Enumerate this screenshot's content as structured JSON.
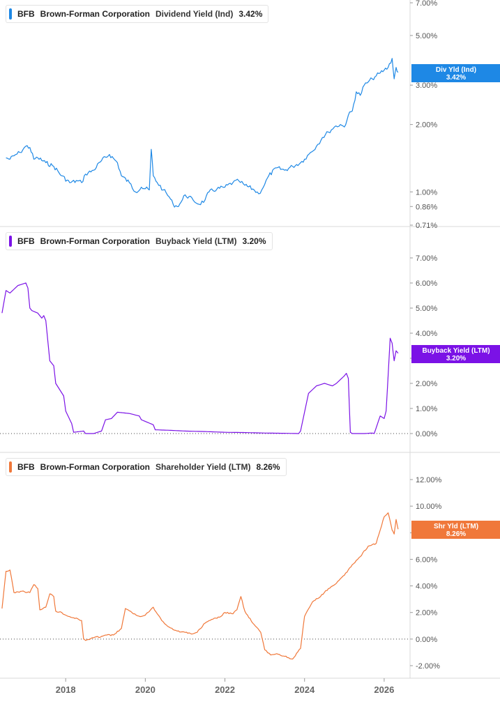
{
  "panels": [
    {
      "ticker": "BFB",
      "company": "Brown-Forman Corporation",
      "metric": "Dividend Yield (Ind)",
      "value": "3.42%",
      "color": "#1e88e5",
      "label_box": [
        "Div Yld (Ind)",
        "3.42%"
      ]
    },
    {
      "ticker": "BFB",
      "company": "Brown-Forman Corporation",
      "metric": "Buyback Yield (LTM)",
      "value": "3.20%",
      "color": "#7b12e6",
      "label_box": [
        "Buyback Yield (LTM)",
        "3.20%"
      ]
    },
    {
      "ticker": "BFB",
      "company": "Brown-Forman Corporation",
      "metric": "Shareholder Yield (LTM)",
      "value": "8.26%",
      "color": "#f0783a",
      "label_box": [
        "Shr Yld (LTM)",
        "8.26%"
      ]
    }
  ],
  "chart_data": [
    {
      "type": "line",
      "title": "BFB Brown-Forman Corporation Dividend Yield (Ind) 3.42%",
      "scale": "log",
      "ylim": [
        0.71,
        7.0
      ],
      "y_ticks": [
        "7.00%",
        "5.00%",
        "3.00%",
        "2.00%",
        "1.00%",
        "0.86%",
        "0.71%"
      ],
      "y_tick_values": [
        7.0,
        5.0,
        3.0,
        2.0,
        1.0,
        0.86,
        0.71
      ],
      "x_ticks": [
        "2018",
        "2020",
        "2022",
        "2024",
        "2026"
      ],
      "series": [
        {
          "x": [
            2016.5,
            2016.6,
            2016.7,
            2016.85,
            2017.0,
            2017.1,
            2017.2,
            2017.3,
            2017.5,
            2017.7,
            2017.9,
            2018.1,
            2018.3,
            2018.4,
            2018.5,
            2018.7,
            2018.9,
            2019.1,
            2019.3,
            2019.4,
            2019.6,
            2019.75,
            2019.9,
            2020.1,
            2020.15,
            2020.2,
            2020.3,
            2020.45,
            2020.6,
            2020.7,
            2020.8,
            2020.9,
            2021.0,
            2021.2,
            2021.35,
            2021.5,
            2021.6,
            2021.8,
            2022.0,
            2022.2,
            2022.35,
            2022.5,
            2022.7,
            2022.85,
            2023.0,
            2023.1,
            2023.3,
            2023.5,
            2023.7,
            2023.9,
            2024.0,
            2024.15,
            2024.3,
            2024.45,
            2024.6,
            2024.75,
            2024.9,
            2025.0,
            2025.1,
            2025.2,
            2025.3,
            2025.4,
            2025.5,
            2025.6,
            2025.7,
            2025.8,
            2025.9,
            2026.0,
            2026.1,
            2026.2,
            2026.25,
            2026.3,
            2026.35
          ],
          "y": [
            1.42,
            1.4,
            1.45,
            1.5,
            1.6,
            1.58,
            1.4,
            1.42,
            1.35,
            1.3,
            1.18,
            1.1,
            1.12,
            1.1,
            1.2,
            1.25,
            1.38,
            1.47,
            1.35,
            1.18,
            1.1,
            1.0,
            1.05,
            1.02,
            1.55,
            1.18,
            1.1,
            1.02,
            0.95,
            0.88,
            0.86,
            0.9,
            0.97,
            0.92,
            0.88,
            0.92,
            1.0,
            1.03,
            1.05,
            1.1,
            1.12,
            1.07,
            1.03,
            0.98,
            1.08,
            1.18,
            1.28,
            1.25,
            1.3,
            1.35,
            1.4,
            1.5,
            1.6,
            1.75,
            1.85,
            1.95,
            2.0,
            1.95,
            2.2,
            2.3,
            2.8,
            2.7,
            3.0,
            3.1,
            3.2,
            3.3,
            3.4,
            3.5,
            3.6,
            3.95,
            3.2,
            3.6,
            3.42
          ]
        }
      ],
      "annotation": [
        "Div Yld (Ind)",
        "3.42%"
      ]
    },
    {
      "type": "line",
      "title": "BFB Brown-Forman Corporation Buyback Yield (LTM) 3.20%",
      "ylim": [
        0.0,
        7.0
      ],
      "y_ticks": [
        "7.00%",
        "6.00%",
        "5.00%",
        "4.00%",
        "3.00%",
        "2.00%",
        "1.00%",
        "0.00%"
      ],
      "y_tick_values": [
        7.0,
        6.0,
        5.0,
        4.0,
        3.0,
        2.0,
        1.0,
        0.0
      ],
      "x_ticks": [
        "2018",
        "2020",
        "2022",
        "2024",
        "2026"
      ],
      "series": [
        {
          "x": [
            2016.4,
            2016.5,
            2016.6,
            2016.8,
            2017.0,
            2017.05,
            2017.1,
            2017.15,
            2017.3,
            2017.4,
            2017.45,
            2017.5,
            2017.6,
            2017.7,
            2017.75,
            2017.95,
            2018.0,
            2018.15,
            2018.2,
            2018.45,
            2018.5,
            2018.7,
            2018.9,
            2019.0,
            2019.15,
            2019.3,
            2019.6,
            2019.85,
            2019.9,
            2020.2,
            2020.25,
            2020.6,
            2021.0,
            2021.5,
            2022.0,
            2022.5,
            2023.0,
            2023.5,
            2023.85,
            2023.9,
            2024.1,
            2024.3,
            2024.5,
            2024.7,
            2024.8,
            2025.0,
            2025.05,
            2025.1,
            2025.15,
            2025.2,
            2025.5,
            2025.7,
            2025.75,
            2025.9,
            2026.0,
            2026.05,
            2026.15,
            2026.2,
            2026.25,
            2026.3,
            2026.35
          ],
          "y": [
            4.8,
            5.7,
            5.6,
            5.9,
            6.0,
            5.8,
            5.0,
            4.9,
            4.8,
            4.6,
            4.7,
            4.5,
            2.9,
            2.7,
            2.0,
            1.5,
            0.9,
            0.4,
            0.05,
            0.1,
            0.0,
            0.0,
            0.1,
            0.55,
            0.6,
            0.85,
            0.8,
            0.7,
            0.55,
            0.35,
            0.15,
            0.13,
            0.1,
            0.08,
            0.05,
            0.04,
            0.02,
            0.01,
            0.0,
            0.1,
            1.6,
            1.9,
            2.0,
            1.9,
            2.0,
            2.3,
            2.4,
            2.2,
            0.05,
            0.0,
            0.0,
            0.02,
            0.0,
            0.7,
            0.6,
            0.9,
            3.8,
            3.6,
            2.9,
            3.3,
            3.2
          ]
        }
      ],
      "annotation": [
        "Buyback Yield (LTM)",
        "3.20%"
      ]
    },
    {
      "type": "line",
      "title": "BFB Brown-Forman Corporation Shareholder Yield (LTM) 8.26%",
      "ylim": [
        -2.0,
        12.0
      ],
      "y_ticks": [
        "12.00%",
        "10.00%",
        "8.00%",
        "6.00%",
        "4.00%",
        "2.00%",
        "0.00%",
        "-2.00%"
      ],
      "y_tick_values": [
        12.0,
        10.0,
        8.0,
        6.0,
        4.0,
        2.0,
        0.0,
        -2.0
      ],
      "x_ticks": [
        "2018",
        "2020",
        "2022",
        "2024",
        "2026"
      ],
      "series": [
        {
          "x": [
            2016.4,
            2016.5,
            2016.6,
            2016.7,
            2016.9,
            2017.1,
            2017.2,
            2017.3,
            2017.35,
            2017.5,
            2017.6,
            2017.7,
            2017.75,
            2017.9,
            2018.0,
            2018.2,
            2018.4,
            2018.45,
            2018.5,
            2018.7,
            2018.9,
            2019.0,
            2019.2,
            2019.4,
            2019.5,
            2019.7,
            2019.9,
            2020.0,
            2020.2,
            2020.3,
            2020.45,
            2020.6,
            2020.8,
            2021.0,
            2021.2,
            2021.3,
            2021.5,
            2021.7,
            2021.9,
            2022.0,
            2022.2,
            2022.3,
            2022.4,
            2022.5,
            2022.7,
            2022.9,
            2023.0,
            2023.15,
            2023.3,
            2023.5,
            2023.7,
            2023.9,
            2024.0,
            2024.2,
            2024.4,
            2024.6,
            2024.8,
            2025.0,
            2025.2,
            2025.4,
            2025.6,
            2025.8,
            2025.9,
            2026.0,
            2026.1,
            2026.2,
            2026.25,
            2026.3,
            2026.35
          ],
          "y": [
            2.3,
            5.1,
            5.2,
            3.5,
            3.6,
            3.5,
            4.1,
            3.8,
            2.2,
            2.4,
            3.4,
            3.2,
            2.1,
            2.0,
            1.8,
            1.6,
            1.4,
            0.0,
            -0.1,
            0.1,
            0.2,
            0.3,
            0.3,
            0.8,
            2.3,
            1.9,
            1.7,
            1.8,
            2.4,
            1.9,
            1.3,
            0.9,
            0.6,
            0.5,
            0.4,
            0.5,
            1.2,
            1.5,
            1.7,
            2.0,
            1.9,
            2.2,
            3.2,
            2.1,
            1.2,
            0.5,
            -0.8,
            -1.2,
            -1.1,
            -1.3,
            -1.5,
            -0.7,
            1.7,
            2.8,
            3.2,
            3.8,
            4.2,
            4.8,
            5.6,
            6.2,
            7.0,
            7.2,
            8.2,
            9.2,
            9.5,
            8.2,
            7.9,
            9.0,
            8.26
          ]
        }
      ],
      "annotation": [
        "Shr Yld (LTM)",
        "8.26%"
      ]
    }
  ]
}
